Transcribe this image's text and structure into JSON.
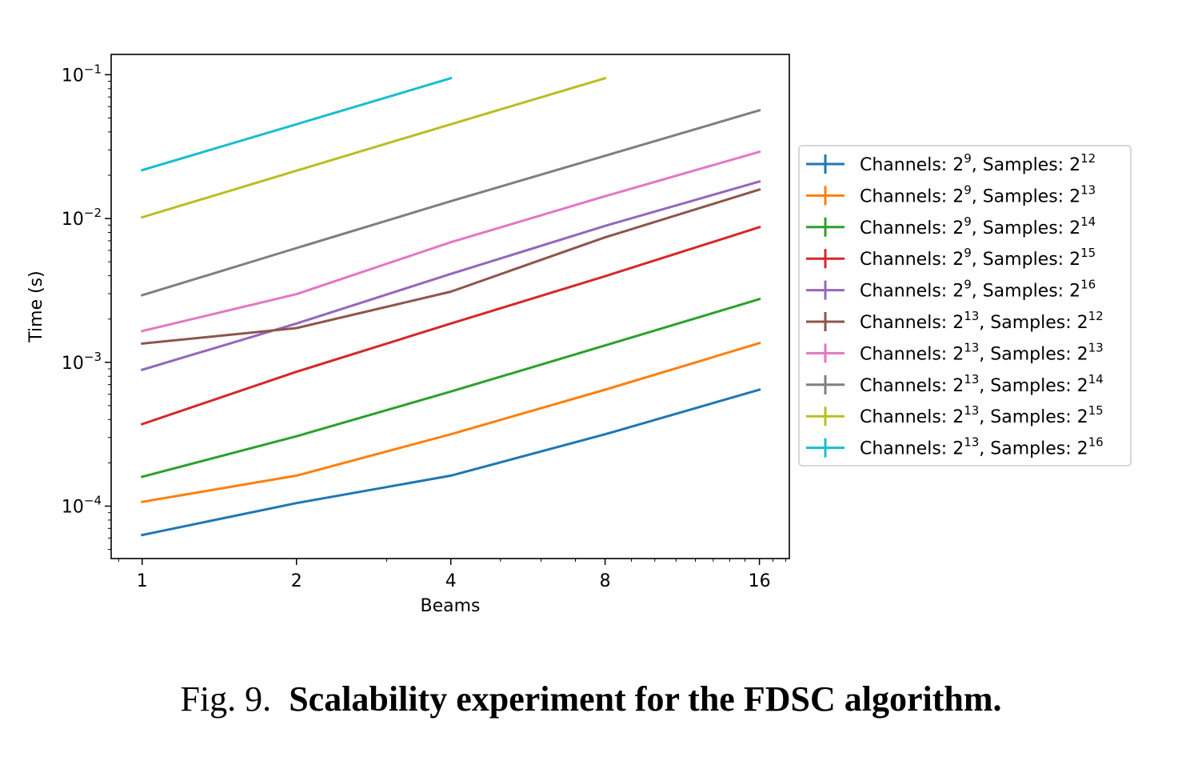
{
  "caption": {
    "label": "Fig. 9.",
    "text": "Scalability experiment for the FDSC algorithm."
  },
  "chart_data": {
    "type": "line",
    "title": "",
    "xlabel": "Beams",
    "ylabel": "Time (s)",
    "xscale": "log2",
    "yscale": "log10",
    "xlim": [
      0.87,
      18.3
    ],
    "ylim": [
      4.32e-05,
      0.1384
    ],
    "x_ticks": [
      1,
      2,
      4,
      8,
      16
    ],
    "x_tick_labels": [
      "1",
      "2",
      "4",
      "8",
      "16"
    ],
    "y_ticks": [
      0.0001,
      0.001,
      0.01,
      0.1
    ],
    "y_tick_labels": [
      {
        "base": "10",
        "exp": "−4"
      },
      {
        "base": "10",
        "exp": "−3"
      },
      {
        "base": "10",
        "exp": "−2"
      },
      {
        "base": "10",
        "exp": "−1"
      }
    ],
    "grid": false,
    "legend_position": "right",
    "series": [
      {
        "legend": {
          "ch_exp": "9",
          "s_exp": "12"
        },
        "color": "#1f77b4",
        "x": [
          1,
          2,
          4,
          8,
          16
        ],
        "y": [
          6.3e-05,
          0.000105,
          0.000163,
          0.000316,
          0.000645
        ]
      },
      {
        "legend": {
          "ch_exp": "9",
          "s_exp": "13"
        },
        "color": "#ff7f0e",
        "x": [
          1,
          2,
          4,
          8,
          16
        ],
        "y": [
          0.000107,
          0.000163,
          0.000316,
          0.000645,
          0.00136
        ]
      },
      {
        "legend": {
          "ch_exp": "9",
          "s_exp": "14"
        },
        "color": "#2ca02c",
        "x": [
          1,
          2,
          4,
          8,
          16
        ],
        "y": [
          0.00016,
          0.000306,
          0.000626,
          0.00131,
          0.00275
        ]
      },
      {
        "legend": {
          "ch_exp": "9",
          "s_exp": "15"
        },
        "color": "#d62728",
        "x": [
          1,
          2,
          4,
          8,
          16
        ],
        "y": [
          0.000372,
          0.000859,
          0.00186,
          0.00397,
          0.0087
        ]
      },
      {
        "legend": {
          "ch_exp": "9",
          "s_exp": "16"
        },
        "color": "#9467bd",
        "x": [
          1,
          2,
          4,
          8,
          16
        ],
        "y": [
          0.000888,
          0.00186,
          0.00412,
          0.00888,
          0.0181
        ]
      },
      {
        "legend": {
          "ch_exp": "13",
          "s_exp": "12"
        },
        "color": "#8c564b",
        "x": [
          1,
          2,
          4,
          8,
          16
        ],
        "y": [
          0.00135,
          0.00173,
          0.0031,
          0.0074,
          0.0159
        ]
      },
      {
        "legend": {
          "ch_exp": "13",
          "s_exp": "13"
        },
        "color": "#e377c2",
        "x": [
          1,
          2,
          4,
          8,
          16
        ],
        "y": [
          0.00165,
          0.00298,
          0.00684,
          0.0143,
          0.0291
        ]
      },
      {
        "legend": {
          "ch_exp": "13",
          "s_exp": "14"
        },
        "color": "#7f7f7f",
        "x": [
          1,
          2,
          4,
          8,
          16
        ],
        "y": [
          0.00293,
          0.00623,
          0.0132,
          0.0273,
          0.0565
        ]
      },
      {
        "legend": {
          "ch_exp": "13",
          "s_exp": "15"
        },
        "color": "#bcbd22",
        "x": [
          1,
          2,
          4,
          8
        ],
        "y": [
          0.0102,
          0.0215,
          0.0452,
          0.0946
        ]
      },
      {
        "legend": {
          "ch_exp": "13",
          "s_exp": "16"
        },
        "color": "#17becf",
        "x": [
          1,
          2,
          4
        ],
        "y": [
          0.0217,
          0.0452,
          0.0946
        ]
      }
    ],
    "legend_text": {
      "channels_label": "Channels: ",
      "samples_label": ", Samples: ",
      "base": "2"
    }
  }
}
